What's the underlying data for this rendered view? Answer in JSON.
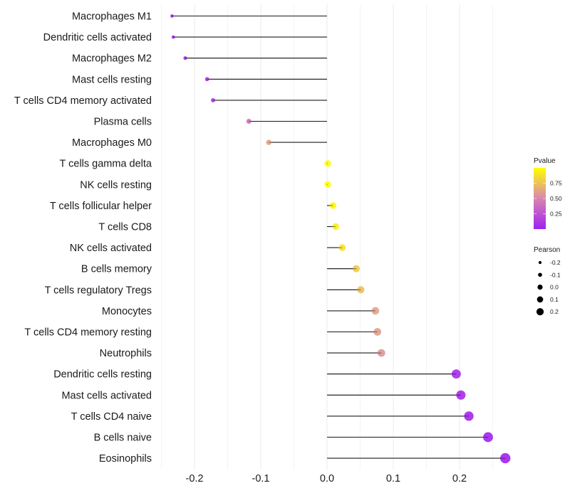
{
  "chart_data": {
    "type": "lollipop",
    "title": "",
    "xlabel": "",
    "ylabel": "",
    "xlim": [
      -0.25,
      0.285
    ],
    "x_ticks": [
      -0.2,
      -0.1,
      0.0,
      0.1,
      0.2
    ],
    "x_tick_labels": [
      "-0.2",
      "-0.1",
      "0.0",
      "0.1",
      "0.2"
    ],
    "grid": true,
    "categories": [
      "Macrophages M1",
      "Dendritic cells activated",
      "Macrophages M2",
      "Mast cells resting",
      "T cells CD4 memory activated",
      "Plasma cells",
      "Macrophages M0",
      "T cells gamma delta",
      "NK cells resting",
      "T cells follicular helper",
      "T cells CD8",
      "NK cells activated",
      "B cells memory",
      "T cells regulatory  Tregs ",
      "Monocytes",
      "T cells CD4 memory resting",
      "Neutrophils",
      "Dendritic cells resting",
      "Mast cells activated",
      "T cells CD4 naive",
      "B cells naive",
      "Eosinophils"
    ],
    "pearson": [
      -0.234,
      -0.232,
      -0.214,
      -0.181,
      -0.172,
      -0.118,
      -0.088,
      0.001,
      0.001,
      0.009,
      0.013,
      0.023,
      0.044,
      0.051,
      0.073,
      0.076,
      0.082,
      0.195,
      0.202,
      0.214,
      0.243,
      0.269
    ],
    "pvalue": [
      0.01,
      0.01,
      0.02,
      0.06,
      0.08,
      0.4,
      0.62,
      0.99,
      0.99,
      0.96,
      0.94,
      0.88,
      0.78,
      0.74,
      0.62,
      0.6,
      0.57,
      0.06,
      0.05,
      0.03,
      0.01,
      0.0
    ],
    "color_legend": {
      "title": "Pvalue",
      "ticks": [
        0.25,
        0.5,
        0.75
      ],
      "tick_labels": [
        "0.25",
        "0.50",
        "0.75"
      ],
      "range": [
        0.0,
        1.0
      ],
      "low_color": "#a020f0",
      "mid_color": "#d886b0",
      "high_color": "#ffff00",
      "placement": "right"
    },
    "size_legend": {
      "title": "Pearson",
      "values": [
        -0.2,
        -0.1,
        0.0,
        0.1,
        0.2
      ],
      "labels": [
        "-0.2",
        "-0.1",
        "0.0",
        "0.1",
        "0.2"
      ],
      "placement": "right"
    }
  }
}
